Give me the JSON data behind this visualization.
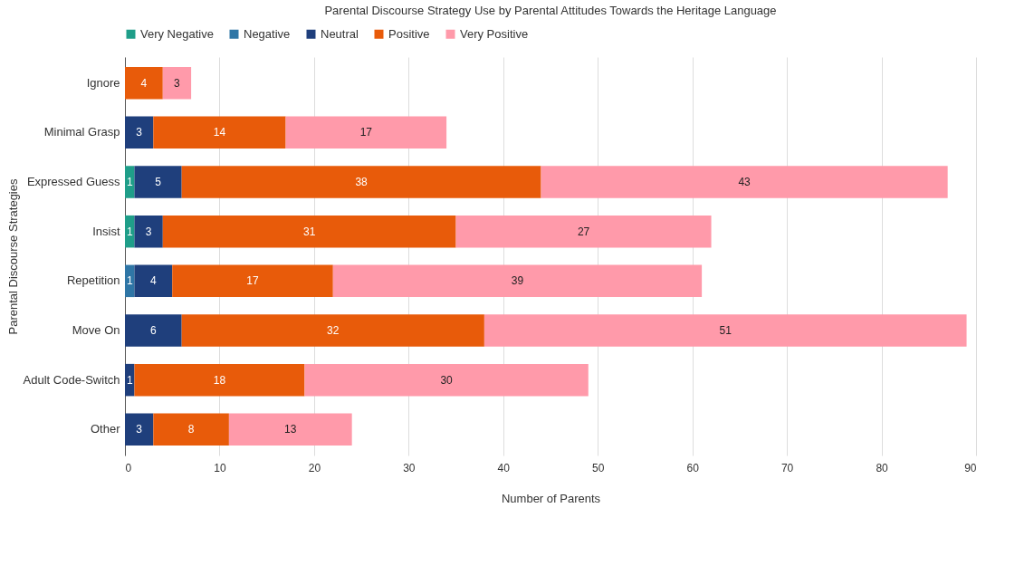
{
  "chart_data": {
    "type": "bar",
    "orientation": "horizontal",
    "stacked": true,
    "title": "Parental Discourse Strategy Use by Parental Attitudes Towards the Heritage Language",
    "xlabel": "Number of Parents",
    "ylabel": "Parental Discourse Strategies",
    "categories": [
      "Ignore",
      "Minimal Grasp",
      "Expressed Guess",
      "Insist",
      "Repetition",
      "Move On",
      "Adult Code-Switch",
      "Other"
    ],
    "series": [
      {
        "name": "Very Negative",
        "color": "#1f9e89",
        "values": [
          null,
          null,
          1,
          1,
          null,
          null,
          null,
          null
        ]
      },
      {
        "name": "Negative",
        "color": "#2f76a6",
        "values": [
          null,
          null,
          null,
          null,
          1,
          null,
          null,
          null
        ]
      },
      {
        "name": "Neutral",
        "color": "#1f3f7c",
        "values": [
          null,
          3,
          5,
          3,
          4,
          6,
          1,
          3
        ]
      },
      {
        "name": "Positive",
        "color": "#e85b0a",
        "values": [
          4,
          14,
          38,
          31,
          17,
          32,
          18,
          8
        ]
      },
      {
        "name": "Very Positive",
        "color": "#ff9aaa",
        "values": [
          3,
          17,
          43,
          27,
          39,
          51,
          30,
          13
        ]
      }
    ],
    "xlim": [
      0,
      90
    ],
    "xticks": [
      0,
      10,
      20,
      30,
      40,
      50,
      60,
      70,
      80,
      90
    ],
    "grid": "x",
    "legend": "top",
    "data_labels": true
  }
}
